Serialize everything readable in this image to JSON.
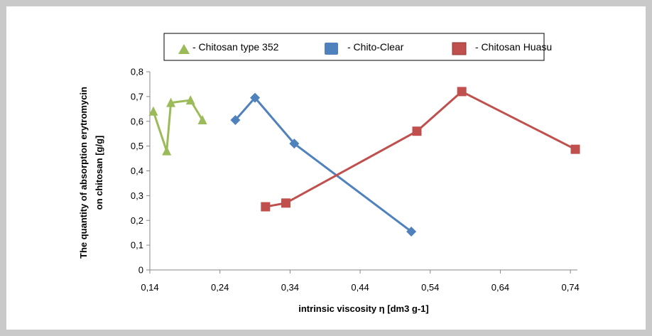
{
  "chart_data": {
    "type": "line",
    "title": "",
    "xlabel": "intrinsic viscosity η [dm3 g-1]",
    "ylabel_lines": [
      "The  quantity of absorption erytromycin",
      "on chitosan [g/g]"
    ],
    "xlim": [
      0.14,
      0.75
    ],
    "ylim": [
      0,
      0.8
    ],
    "x_ticks": [
      0.14,
      0.24,
      0.34,
      0.44,
      0.54,
      0.64,
      0.74
    ],
    "x_tick_labels": [
      "0,14",
      "0,24",
      "0,34",
      "0,44",
      "0,54",
      "0,64",
      "0,74"
    ],
    "y_ticks": [
      0,
      0.1,
      0.2,
      0.3,
      0.4,
      0.5,
      0.6,
      0.7,
      0.8
    ],
    "y_tick_labels": [
      "0",
      "0,1",
      "0,2",
      "0,3",
      "0,4",
      "0,5",
      "0,6",
      "0,7",
      "0,8"
    ],
    "grid": false,
    "legend_position": "top",
    "series": [
      {
        "name": "Chitosan  type 352",
        "legend_label": "- Chitosan  type 352",
        "marker": "triangle",
        "color": "#9bbb59",
        "points": [
          [
            0.145,
            0.64
          ],
          [
            0.164,
            0.48
          ],
          [
            0.17,
            0.675
          ],
          [
            0.198,
            0.685
          ],
          [
            0.215,
            0.605
          ]
        ]
      },
      {
        "name": "Chito-Clear",
        "legend_label": "- Chito-Clear",
        "marker": "diamond",
        "color": "#4f81bd",
        "points": [
          [
            0.262,
            0.605
          ],
          [
            0.29,
            0.695
          ],
          [
            0.346,
            0.51
          ],
          [
            0.513,
            0.155
          ]
        ]
      },
      {
        "name": "Chitosan Huasu",
        "legend_label": "- Chitosan Huasu",
        "marker": "square",
        "color": "#c0504d",
        "points": [
          [
            0.305,
            0.255
          ],
          [
            0.334,
            0.27
          ],
          [
            0.521,
            0.56
          ],
          [
            0.585,
            0.72
          ],
          [
            0.747,
            0.487
          ]
        ]
      }
    ]
  }
}
